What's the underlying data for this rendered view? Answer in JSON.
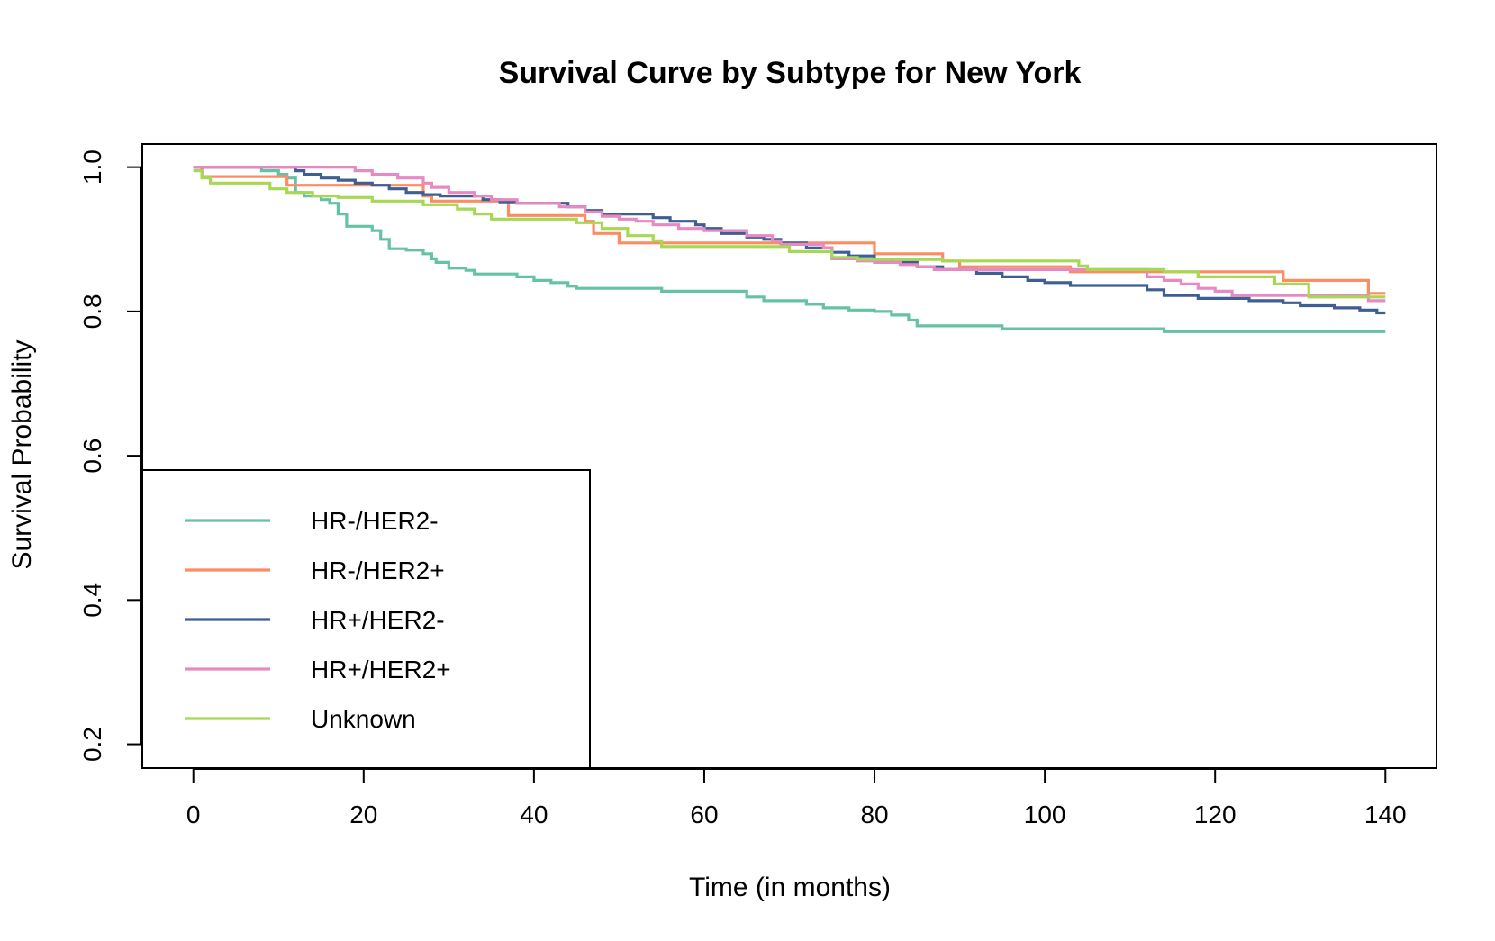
{
  "chart_data": {
    "type": "line",
    "step": true,
    "title": "Survival Curve by Subtype for New York",
    "xlabel": "Time (in months)",
    "ylabel": "Survival Probability",
    "xlim": [
      -6,
      146
    ],
    "ylim": [
      0.167,
      1.032
    ],
    "xticks": [
      0,
      20,
      40,
      60,
      80,
      100,
      120,
      140
    ],
    "yticks": [
      0.2,
      0.4,
      0.6,
      0.8,
      1.0
    ],
    "xtick_labels": [
      "0",
      "20",
      "40",
      "60",
      "80",
      "100",
      "120",
      "140"
    ],
    "ytick_labels": [
      "0.2",
      "0.4",
      "0.6",
      "0.8",
      "1.0"
    ],
    "grid": false,
    "legend_position": "bottom-left",
    "series": [
      {
        "name": "HR-/HER2-",
        "color": "#66c2a5",
        "points": [
          [
            0,
            1.0
          ],
          [
            7,
            1.0
          ],
          [
            8,
            0.995
          ],
          [
            10,
            0.99
          ],
          [
            11,
            0.985
          ],
          [
            12,
            0.965
          ],
          [
            13,
            0.96
          ],
          [
            15,
            0.955
          ],
          [
            16,
            0.95
          ],
          [
            17,
            0.935
          ],
          [
            18,
            0.918
          ],
          [
            21,
            0.912
          ],
          [
            22,
            0.9
          ],
          [
            23,
            0.887
          ],
          [
            25,
            0.885
          ],
          [
            27,
            0.88
          ],
          [
            28,
            0.873
          ],
          [
            28.5,
            0.868
          ],
          [
            30,
            0.86
          ],
          [
            32,
            0.857
          ],
          [
            33,
            0.852
          ],
          [
            38,
            0.848
          ],
          [
            40,
            0.843
          ],
          [
            42,
            0.84
          ],
          [
            44,
            0.835
          ],
          [
            45,
            0.832
          ],
          [
            55,
            0.828
          ],
          [
            65,
            0.82
          ],
          [
            67,
            0.815
          ],
          [
            72,
            0.81
          ],
          [
            74,
            0.805
          ],
          [
            77,
            0.802
          ],
          [
            80,
            0.8
          ],
          [
            82,
            0.795
          ],
          [
            84,
            0.788
          ],
          [
            85,
            0.78
          ],
          [
            95,
            0.776
          ],
          [
            114,
            0.772
          ],
          [
            140,
            0.772
          ]
        ]
      },
      {
        "name": "HR-/HER2+",
        "color": "#fc8d62",
        "points": [
          [
            0,
            1.0
          ],
          [
            1,
            0.987
          ],
          [
            11,
            0.975
          ],
          [
            20,
            0.975
          ],
          [
            27,
            0.96
          ],
          [
            28,
            0.953
          ],
          [
            37,
            0.933
          ],
          [
            45,
            0.933
          ],
          [
            46,
            0.925
          ],
          [
            47,
            0.908
          ],
          [
            50,
            0.895
          ],
          [
            80,
            0.88
          ],
          [
            88,
            0.87
          ],
          [
            90,
            0.862
          ],
          [
            103,
            0.855
          ],
          [
            128,
            0.843
          ],
          [
            138,
            0.825
          ],
          [
            140,
            0.825
          ]
        ]
      },
      {
        "name": "HR+/HER2-",
        "color": "#3f5e93",
        "points": [
          [
            0,
            1.0
          ],
          [
            11,
            1.0
          ],
          [
            12,
            0.995
          ],
          [
            13,
            0.99
          ],
          [
            15,
            0.985
          ],
          [
            17,
            0.982
          ],
          [
            19,
            0.978
          ],
          [
            21,
            0.975
          ],
          [
            23,
            0.97
          ],
          [
            25,
            0.965
          ],
          [
            27,
            0.962
          ],
          [
            29,
            0.96
          ],
          [
            34,
            0.955
          ],
          [
            36,
            0.952
          ],
          [
            38,
            0.95
          ],
          [
            44,
            0.945
          ],
          [
            46,
            0.94
          ],
          [
            48,
            0.935
          ],
          [
            54,
            0.93
          ],
          [
            56,
            0.925
          ],
          [
            59,
            0.92
          ],
          [
            60,
            0.915
          ],
          [
            62,
            0.908
          ],
          [
            65,
            0.903
          ],
          [
            67,
            0.9
          ],
          [
            69,
            0.895
          ],
          [
            72,
            0.888
          ],
          [
            75,
            0.882
          ],
          [
            77,
            0.877
          ],
          [
            80,
            0.872
          ],
          [
            82,
            0.868
          ],
          [
            85,
            0.862
          ],
          [
            88,
            0.858
          ],
          [
            92,
            0.853
          ],
          [
            95,
            0.848
          ],
          [
            98,
            0.843
          ],
          [
            100,
            0.84
          ],
          [
            103,
            0.836
          ],
          [
            108,
            0.836
          ],
          [
            112,
            0.83
          ],
          [
            114,
            0.822
          ],
          [
            118,
            0.818
          ],
          [
            124,
            0.815
          ],
          [
            128,
            0.812
          ],
          [
            130,
            0.808
          ],
          [
            134,
            0.805
          ],
          [
            137,
            0.802
          ],
          [
            139,
            0.798
          ],
          [
            140,
            0.798
          ]
        ]
      },
      {
        "name": "HR+/HER2+",
        "color": "#e78ac3",
        "points": [
          [
            0,
            1.0
          ],
          [
            18,
            1.0
          ],
          [
            19,
            0.995
          ],
          [
            21,
            0.99
          ],
          [
            24,
            0.985
          ],
          [
            27,
            0.978
          ],
          [
            28,
            0.972
          ],
          [
            30,
            0.965
          ],
          [
            33,
            0.96
          ],
          [
            35,
            0.955
          ],
          [
            38,
            0.95
          ],
          [
            43,
            0.945
          ],
          [
            46,
            0.938
          ],
          [
            48,
            0.932
          ],
          [
            50,
            0.928
          ],
          [
            52,
            0.925
          ],
          [
            54,
            0.92
          ],
          [
            57,
            0.915
          ],
          [
            60,
            0.912
          ],
          [
            65,
            0.905
          ],
          [
            68,
            0.898
          ],
          [
            69,
            0.893
          ],
          [
            74,
            0.888
          ],
          [
            75,
            0.873
          ],
          [
            78,
            0.87
          ],
          [
            80,
            0.868
          ],
          [
            83,
            0.865
          ],
          [
            85,
            0.862
          ],
          [
            87,
            0.858
          ],
          [
            110,
            0.858
          ],
          [
            112,
            0.848
          ],
          [
            114,
            0.843
          ],
          [
            116,
            0.838
          ],
          [
            118,
            0.832
          ],
          [
            120,
            0.828
          ],
          [
            122,
            0.822
          ],
          [
            137,
            0.822
          ],
          [
            138,
            0.815
          ],
          [
            140,
            0.815
          ]
        ]
      },
      {
        "name": "Unknown",
        "color": "#a6d854",
        "points": [
          [
            0,
            0.995
          ],
          [
            1,
            0.985
          ],
          [
            2,
            0.978
          ],
          [
            9,
            0.97
          ],
          [
            11,
            0.965
          ],
          [
            14,
            0.96
          ],
          [
            17,
            0.958
          ],
          [
            21,
            0.953
          ],
          [
            27,
            0.948
          ],
          [
            31,
            0.942
          ],
          [
            33,
            0.935
          ],
          [
            35,
            0.928
          ],
          [
            45,
            0.923
          ],
          [
            48,
            0.915
          ],
          [
            51,
            0.905
          ],
          [
            54,
            0.898
          ],
          [
            55,
            0.89
          ],
          [
            67,
            0.89
          ],
          [
            70,
            0.883
          ],
          [
            75,
            0.875
          ],
          [
            78,
            0.872
          ],
          [
            88,
            0.87
          ],
          [
            95,
            0.87
          ],
          [
            104,
            0.863
          ],
          [
            105,
            0.858
          ],
          [
            114,
            0.855
          ],
          [
            118,
            0.848
          ],
          [
            127,
            0.838
          ],
          [
            131,
            0.82
          ],
          [
            140,
            0.82
          ]
        ]
      }
    ]
  }
}
